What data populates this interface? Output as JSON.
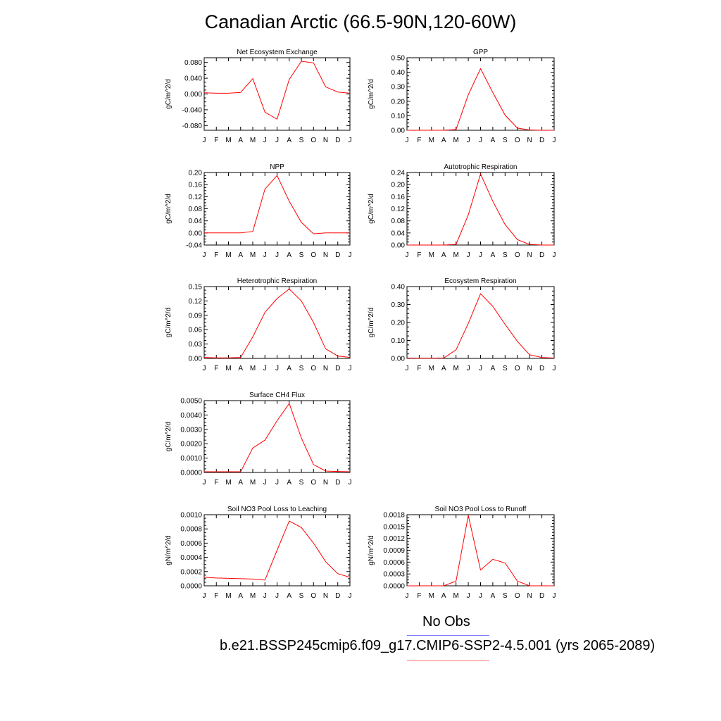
{
  "title": "Canadian Arctic (66.5-90N,120-60W)",
  "legend": {
    "obs_label": "No Obs",
    "case_label": "b.e21.BSSP245cmip6.f09_g17.CMIP6-SSP2-4.5.001 (yrs 2065-2089)",
    "obs_color": "#8080ff",
    "case_color": "#ff8080"
  },
  "colors": {
    "series": "#ff0000",
    "axis": "#000000"
  },
  "chart_data": [
    {
      "type": "line",
      "title": "Net Ecosystem Exchange",
      "ylabel": "gC/m^2/d",
      "categories": [
        "J",
        "F",
        "M",
        "A",
        "M",
        "J",
        "J",
        "A",
        "S",
        "O",
        "N",
        "D",
        "J"
      ],
      "yticks": [
        "-0.080",
        "-0.040",
        "0.000",
        "0.040",
        "0.080"
      ],
      "ylim": [
        -0.092,
        0.092
      ],
      "values": [
        0.003,
        0.002,
        0.002,
        0.004,
        0.039,
        -0.046,
        -0.064,
        0.037,
        0.083,
        0.079,
        0.018,
        0.005,
        0.002
      ]
    },
    {
      "type": "line",
      "title": "GPP",
      "ylabel": "gC/m^2/d",
      "categories": [
        "J",
        "F",
        "M",
        "A",
        "M",
        "J",
        "J",
        "A",
        "S",
        "O",
        "N",
        "D",
        "J"
      ],
      "yticks": [
        "0.00",
        "0.10",
        "0.20",
        "0.30",
        "0.40",
        "0.50"
      ],
      "ylim": [
        0,
        0.5
      ],
      "values": [
        0,
        0,
        0,
        0,
        0.005,
        0.245,
        0.425,
        0.26,
        0.105,
        0.015,
        0.002,
        0,
        0
      ]
    },
    {
      "type": "line",
      "title": "NPP",
      "ylabel": "gC/m^2/d",
      "categories": [
        "J",
        "F",
        "M",
        "A",
        "M",
        "J",
        "J",
        "A",
        "S",
        "O",
        "N",
        "D",
        "J"
      ],
      "yticks": [
        "-0.04",
        "0.00",
        "0.04",
        "0.08",
        "0.12",
        "0.16",
        "0.20"
      ],
      "ylim": [
        -0.04,
        0.2
      ],
      "values": [
        0,
        0,
        0,
        0,
        0.005,
        0.145,
        0.19,
        0.105,
        0.035,
        -0.003,
        0,
        0,
        0
      ]
    },
    {
      "type": "line",
      "title": "Autotrophic Respiration",
      "ylabel": "gC/m^2/d",
      "categories": [
        "J",
        "F",
        "M",
        "A",
        "M",
        "J",
        "J",
        "A",
        "S",
        "O",
        "N",
        "D",
        "J"
      ],
      "yticks": [
        "0.00",
        "0.04",
        "0.08",
        "0.12",
        "0.16",
        "0.20",
        "0.24"
      ],
      "ylim": [
        0,
        0.24
      ],
      "values": [
        0,
        0,
        0,
        0,
        0.002,
        0.1,
        0.235,
        0.145,
        0.068,
        0.018,
        0.002,
        0,
        0
      ]
    },
    {
      "type": "line",
      "title": "Heterotrophic Respiration",
      "ylabel": "gC/m^2/d",
      "categories": [
        "J",
        "F",
        "M",
        "A",
        "M",
        "J",
        "J",
        "A",
        "S",
        "O",
        "N",
        "D",
        "J"
      ],
      "yticks": [
        "0.00",
        "0.03",
        "0.06",
        "0.09",
        "0.12",
        "0.15"
      ],
      "ylim": [
        0,
        0.15
      ],
      "values": [
        0.002,
        0.001,
        0.001,
        0.002,
        0.045,
        0.096,
        0.125,
        0.145,
        0.12,
        0.075,
        0.02,
        0.005,
        0.002
      ]
    },
    {
      "type": "line",
      "title": "Ecosystem Respiration",
      "ylabel": "gC/m^2/d",
      "categories": [
        "J",
        "F",
        "M",
        "A",
        "M",
        "J",
        "J",
        "A",
        "S",
        "O",
        "N",
        "D",
        "J"
      ],
      "yticks": [
        "0.00",
        "0.10",
        "0.20",
        "0.30",
        "0.40"
      ],
      "ylim": [
        0,
        0.4
      ],
      "values": [
        0.002,
        0.001,
        0.001,
        0.002,
        0.048,
        0.195,
        0.36,
        0.29,
        0.19,
        0.095,
        0.02,
        0.005,
        0.002
      ]
    },
    {
      "type": "line",
      "title": "Surface CH4 Flux",
      "ylabel": "gC/m^2/d",
      "categories": [
        "J",
        "F",
        "M",
        "A",
        "M",
        "J",
        "J",
        "A",
        "S",
        "O",
        "N",
        "D",
        "J"
      ],
      "yticks": [
        "0.0000",
        "0.0010",
        "0.0020",
        "0.0030",
        "0.0040",
        "0.0050"
      ],
      "ylim": [
        0,
        0.005
      ],
      "values": [
        5e-05,
        5e-05,
        5e-05,
        5e-05,
        0.0017,
        0.00225,
        0.0036,
        0.0048,
        0.0024,
        0.00055,
        0.0001,
        7e-05,
        5e-05
      ]
    },
    {
      "type": "line",
      "title": "Soil NO3 Pool Loss to Leaching",
      "ylabel": "gN/m^2/d",
      "categories": [
        "J",
        "F",
        "M",
        "A",
        "M",
        "J",
        "J",
        "A",
        "S",
        "O",
        "N",
        "D",
        "J"
      ],
      "yticks": [
        "0.0000",
        "0.0002",
        "0.0004",
        "0.0006",
        "0.0008",
        "0.0010"
      ],
      "ylim": [
        0,
        0.001
      ],
      "values": [
        0.00012,
        0.00011,
        0.000105,
        0.0001,
        9.5e-05,
        8e-05,
        0.0005,
        0.00091,
        0.00082,
        0.0006,
        0.00034,
        0.00017,
        0.00012
      ]
    },
    {
      "type": "line",
      "title": "Soil NO3 Pool Loss to Runoff",
      "ylabel": "gN/m^2/d",
      "categories": [
        "J",
        "F",
        "M",
        "A",
        "M",
        "J",
        "J",
        "A",
        "S",
        "O",
        "N",
        "D",
        "J"
      ],
      "yticks": [
        "0.0000",
        "0.0003",
        "0.0006",
        "0.0009",
        "0.0012",
        "0.0015",
        "0.0018"
      ],
      "ylim": [
        0,
        0.0018
      ],
      "values": [
        0,
        0,
        0,
        0,
        0.00012,
        0.00178,
        0.0004,
        0.00067,
        0.00058,
        0.00012,
        0,
        0,
        0
      ]
    }
  ]
}
